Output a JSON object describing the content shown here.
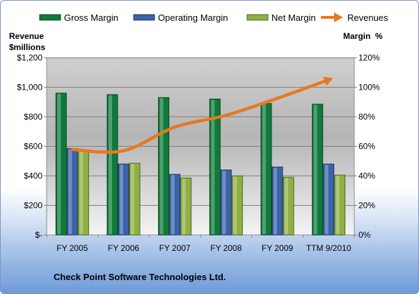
{
  "chart_data": {
    "type": "bar",
    "categories": [
      "FY 2005",
      "FY 2006",
      "FY 2007",
      "FY 2008",
      "FY 2009",
      "TTM 9/2010"
    ],
    "series": [
      {
        "name": "Gross Margin",
        "axis": "right",
        "values": [
          96,
          95,
          93,
          92,
          89,
          88.5
        ],
        "color": "#0f7a3a"
      },
      {
        "name": "Operating Margin",
        "axis": "right",
        "values": [
          58.5,
          48,
          41,
          44,
          46,
          48
        ],
        "color": "#3a63a8"
      },
      {
        "name": "Net Margin",
        "axis": "right",
        "values": [
          57,
          48.5,
          38.5,
          40,
          39,
          40.5
        ],
        "color": "#8fb043"
      }
    ],
    "line_series": {
      "name": "Revenues",
      "axis": "left",
      "values": [
        578,
        570,
        730,
        810,
        925,
        1050
      ],
      "color": "#e8781f"
    },
    "left_axis": {
      "label_line1": "Revenue",
      "label_line2": "$millions",
      "ticks": [
        "$-",
        "$200",
        "$400",
        "$600",
        "$800",
        "$1,000",
        "$1,200"
      ],
      "ylim": [
        0,
        1200
      ]
    },
    "right_axis": {
      "label": "Margin  %",
      "ticks": [
        "0%",
        "20%",
        "40%",
        "60%",
        "80%",
        "100%",
        "120%"
      ],
      "ylim": [
        0,
        120
      ]
    },
    "legend_position": "top",
    "grid": true
  },
  "footer": {
    "company": "Check Point Software Technologies Ltd."
  }
}
